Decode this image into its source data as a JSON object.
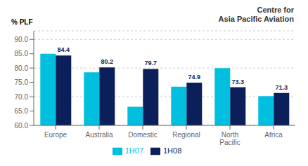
{
  "chart_data": {
    "type": "bar",
    "annotations": [
      "Centre for",
      "Asia Pacific Aviation"
    ],
    "ylabel": "% PLF",
    "categories": [
      "Europe",
      "Australia",
      "Domestic",
      "Regional",
      "North\nPacific",
      "Africa"
    ],
    "series": [
      {
        "name": "1H07",
        "color": "#00BFDF",
        "values": [
          85.0,
          78.5,
          66.5,
          73.5,
          80.0,
          70.2
        ]
      },
      {
        "name": "1H08",
        "color": "#0B1F5B",
        "values": [
          84.4,
          80.2,
          79.7,
          74.9,
          73.3,
          71.3
        ],
        "data_labels": true
      }
    ],
    "ylim": [
      60.0,
      93.0
    ],
    "yticks": [
      {
        "value": 60.0,
        "label": "60.0"
      },
      {
        "value": 65.0,
        "label": "65.0"
      },
      {
        "value": 70.0,
        "label": "70.0"
      },
      {
        "value": 75.0,
        "label": "75.0"
      },
      {
        "value": 80.0,
        "label": "80.0"
      },
      {
        "value": 85.0,
        "label": "85.0"
      },
      {
        "value": 90.0,
        "label": "90.0"
      }
    ],
    "grid": true,
    "legend": "bottom"
  }
}
